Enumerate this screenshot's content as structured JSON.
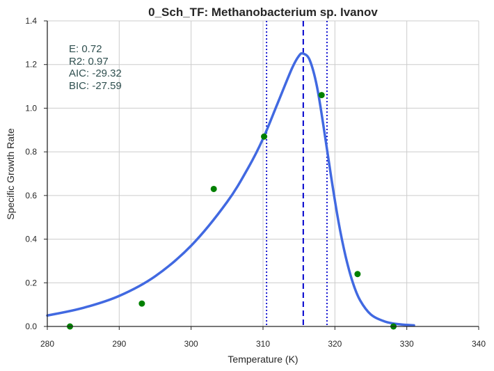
{
  "chart_data": {
    "type": "scatter",
    "title": "0_Sch_TF: Methanobacterium sp. Ivanov",
    "xlabel": "Temperature (K)",
    "ylabel": "Specific Growth Rate",
    "xlim": [
      280,
      340
    ],
    "ylim": [
      0,
      1.4
    ],
    "x_ticks": [
      "280",
      "290",
      "300",
      "310",
      "320",
      "330",
      "340"
    ],
    "y_ticks": [
      "0.0",
      "0.2",
      "0.4",
      "0.6",
      "0.8",
      "1.0",
      "1.2",
      "1.4"
    ],
    "grid": true,
    "stats": [
      "E:  0.72",
      "R2:  0.97",
      "AIC: -29.32",
      "BIC: -27.59"
    ],
    "colors": {
      "fit": "#4169e1",
      "points": "#008000",
      "peak_line": "#0000cd",
      "bound_lines": "#0000cd",
      "stats": "#2f4f4f"
    },
    "series": [
      {
        "type": "scatter",
        "x": [
          283.15,
          293.15,
          303.15,
          310.15,
          318.15,
          323.15,
          328.15
        ],
        "y": [
          0.0,
          0.105,
          0.63,
          0.87,
          1.06,
          0.24,
          0.0
        ]
      },
      {
        "type": "line",
        "x": [
          280,
          285,
          290,
          295,
          300,
          305,
          308,
          310,
          312,
          314,
          315,
          315.6,
          316.5,
          317.5,
          318.5,
          319.5,
          320.5,
          321.5,
          322.5,
          323.5,
          325,
          327,
          329,
          331
        ],
        "y": [
          0.05,
          0.085,
          0.14,
          0.23,
          0.37,
          0.57,
          0.73,
          0.86,
          1.02,
          1.18,
          1.24,
          1.25,
          1.22,
          1.1,
          0.9,
          0.68,
          0.48,
          0.32,
          0.2,
          0.12,
          0.055,
          0.022,
          0.01,
          0.005
        ]
      }
    ],
    "vertical_lines": [
      {
        "x": 315.6,
        "style": "dashed"
      },
      {
        "x": 310.5,
        "style": "dotted"
      },
      {
        "x": 318.9,
        "style": "dotted"
      }
    ]
  }
}
